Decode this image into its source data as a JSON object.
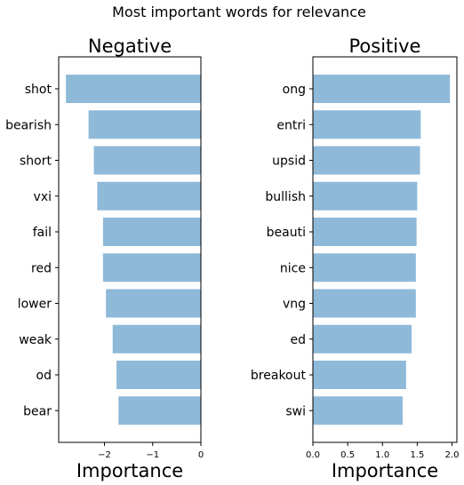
{
  "figure_title": "Most important words for relevance",
  "bar_color": "#8fb9d9",
  "chart_data": [
    {
      "type": "bar",
      "orientation": "horizontal",
      "title": "Negative",
      "xlabel": "Importance",
      "ylabel": "",
      "xlim": [
        -2.95,
        0
      ],
      "xticks": [
        -2,
        -1,
        0
      ],
      "xtick_labels": [
        "−2",
        "−1",
        "0"
      ],
      "categories": [
        "shot",
        "bearish",
        "short",
        "vxi",
        "fail",
        "red",
        "lower",
        "weak",
        "od",
        "bear"
      ],
      "values": [
        -2.8,
        -2.33,
        -2.22,
        -2.15,
        -2.03,
        -2.03,
        -1.97,
        -1.83,
        -1.75,
        -1.71
      ]
    },
    {
      "type": "bar",
      "orientation": "horizontal",
      "title": "Positive",
      "xlabel": "Importance",
      "ylabel": "",
      "xlim": [
        0,
        2.07
      ],
      "xticks": [
        0,
        0.5,
        1,
        1.5,
        2
      ],
      "xtick_labels": [
        "0.0",
        "0.5",
        "1.0",
        "1.5",
        "2.0"
      ],
      "categories": [
        "ong",
        "entri",
        "upsid",
        "bullish",
        "beauti",
        "nice",
        "vng",
        "ed",
        "breakout",
        "swi"
      ],
      "values": [
        1.97,
        1.55,
        1.54,
        1.5,
        1.49,
        1.48,
        1.48,
        1.42,
        1.34,
        1.29
      ]
    }
  ]
}
